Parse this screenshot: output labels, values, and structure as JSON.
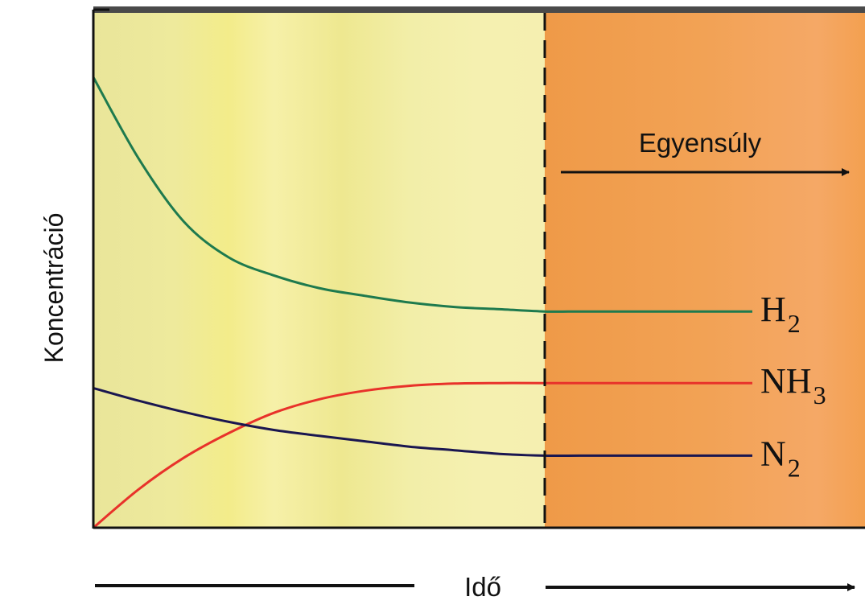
{
  "chart_data": {
    "type": "line",
    "xlabel": "Idő",
    "ylabel": "Koncentráció",
    "annotation": "Egyensúly",
    "x": [
      0,
      1,
      2,
      3,
      4,
      5,
      6,
      7,
      8,
      9,
      10,
      11,
      12,
      13,
      14,
      15,
      16
    ],
    "equilibrium_x": 10,
    "xlim": [
      0,
      16
    ],
    "ylim": [
      0,
      100
    ],
    "regions": [
      {
        "from": 0,
        "to": 10,
        "color": "#eeeaa2"
      },
      {
        "from": 10,
        "to": 16,
        "color": "#f0a050"
      }
    ],
    "series": [
      {
        "name": "H",
        "subscript": "2",
        "color": "#1e7a4e",
        "values": [
          100,
          82,
          68,
          60,
          56,
          53.2,
          51.5,
          50.0,
          49.0,
          48.5,
          48.0,
          48.0,
          48.0,
          48.0,
          48.0,
          48.0,
          48.0
        ]
      },
      {
        "name": "NH",
        "subscript": "3",
        "color": "#e8322a",
        "values": [
          0,
          8.5,
          15.5,
          21.0,
          25.5,
          28.5,
          30.4,
          31.5,
          32.0,
          32.1,
          32.1,
          32.1,
          32.1,
          32.1,
          32.1,
          32.1,
          32.1
        ]
      },
      {
        "name": "N",
        "subscript": "2",
        "color": "#1a1650",
        "values": [
          31,
          28.2,
          25.7,
          23.5,
          21.7,
          20.4,
          19.2,
          18.0,
          17.2,
          16.4,
          16.0,
          16.0,
          16.0,
          16.0,
          16.0,
          16.0,
          16.0
        ]
      }
    ]
  }
}
